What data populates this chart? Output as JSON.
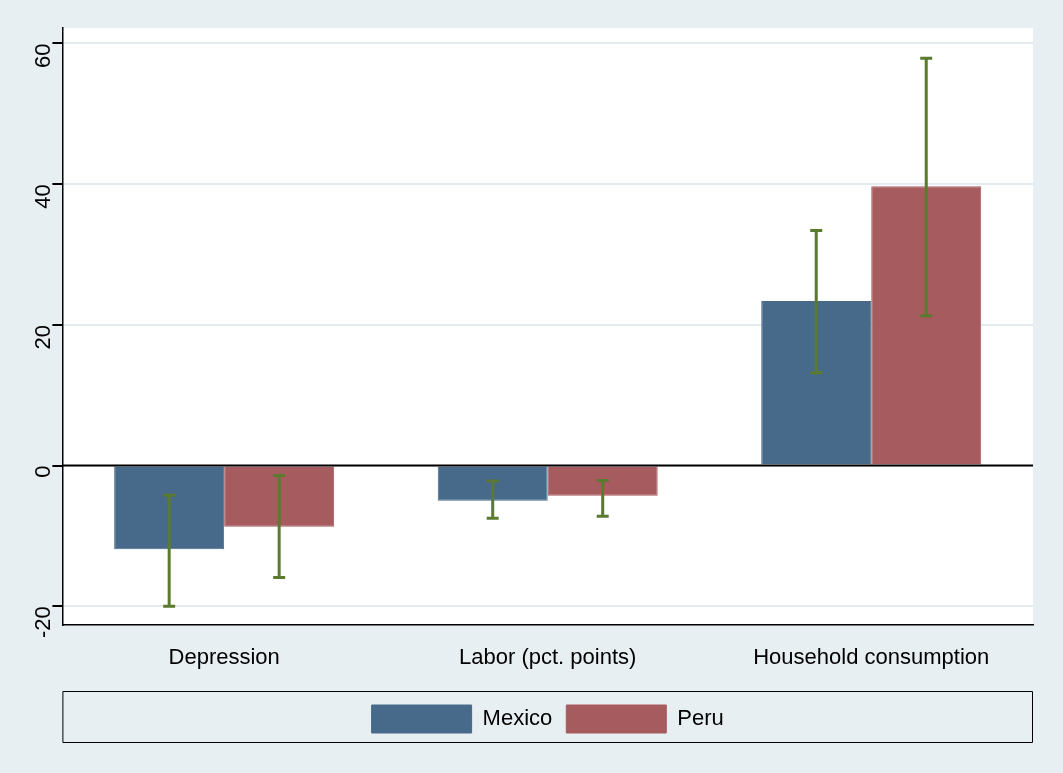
{
  "chart_data": {
    "type": "bar",
    "categories": [
      "Depression",
      "Labor (pct. points)",
      "Household consumption"
    ],
    "series": [
      {
        "name": "Mexico",
        "color": "#476a8a",
        "values": [
          -11.9,
          -5.0,
          23.4
        ],
        "errors": [
          [
            -20.0,
            -4.2
          ],
          [
            -7.5,
            -2.2
          ],
          [
            13.2,
            33.4
          ]
        ]
      },
      {
        "name": "Peru",
        "color": "#a65b5e",
        "values": [
          -8.7,
          -4.3,
          39.7
        ],
        "errors": [
          [
            -15.9,
            -1.4
          ],
          [
            -7.2,
            -2.1
          ],
          [
            21.3,
            57.9
          ]
        ]
      }
    ],
    "ylim": [
      -22.6,
      62.2
    ],
    "yticks": [
      -20,
      0,
      20,
      40,
      60
    ],
    "grid": "y",
    "legend": "bottom",
    "ref_lines": [
      {
        "axis": "y",
        "value": 0,
        "color": "#000000"
      }
    ]
  }
}
